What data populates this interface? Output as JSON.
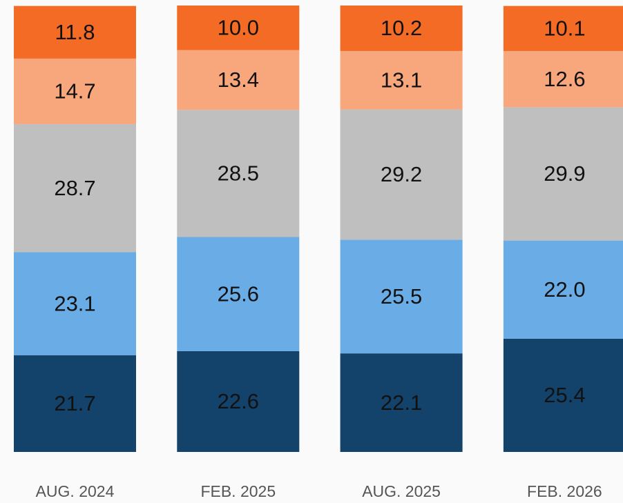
{
  "chart_data": {
    "type": "stacked_bar",
    "categories": [
      "AUG. 2024",
      "FEB. 2025",
      "AUG. 2025",
      "FEB. 2026"
    ],
    "series": [
      {
        "color": "#13426b",
        "values": [
          21.7,
          22.6,
          22.1,
          25.4
        ],
        "value_labels": [
          "21.7",
          "22.6",
          "22.1",
          "25.4"
        ]
      },
      {
        "color": "#6aace6",
        "values": [
          23.1,
          25.6,
          25.5,
          22.0
        ],
        "value_labels": [
          "23.1",
          "25.6",
          "25.5",
          "22.0"
        ]
      },
      {
        "color": "#bfbfbf",
        "values": [
          28.7,
          28.5,
          29.2,
          29.9
        ],
        "value_labels": [
          "28.7",
          "28.5",
          "29.2",
          "29.9"
        ]
      },
      {
        "color": "#f8a77c",
        "values": [
          14.7,
          13.4,
          13.1,
          12.6
        ],
        "value_labels": [
          "14.7",
          "13.4",
          "13.1",
          "12.6"
        ]
      },
      {
        "color": "#f46b25",
        "values": [
          11.8,
          10.0,
          10.2,
          10.1
        ],
        "value_labels": [
          "11.8",
          "10.0",
          "10.2",
          "10.1"
        ]
      }
    ]
  }
}
